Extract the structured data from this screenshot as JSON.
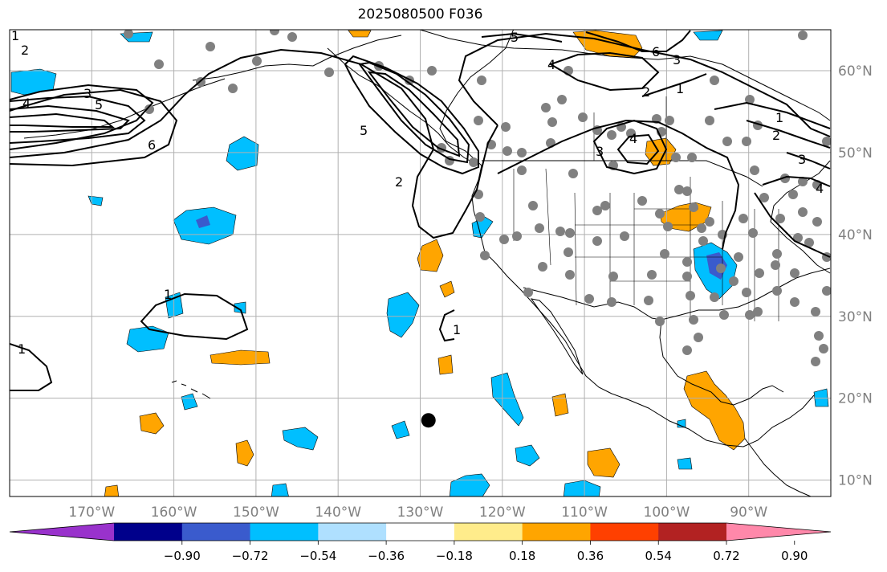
{
  "title": "2025080500 F036",
  "map": {
    "lon_range": [
      -180,
      -80
    ],
    "lat_range": [
      8,
      65
    ],
    "lon_ticks": [
      {
        "value": -170,
        "label": "170°W"
      },
      {
        "value": -160,
        "label": "160°W"
      },
      {
        "value": -150,
        "label": "150°W"
      },
      {
        "value": -140,
        "label": "140°W"
      },
      {
        "value": -130,
        "label": "130°W"
      },
      {
        "value": -120,
        "label": "120°W"
      },
      {
        "value": -110,
        "label": "110°W"
      },
      {
        "value": -100,
        "label": "100°W"
      },
      {
        "value": -90,
        "label": "90°W"
      }
    ],
    "lat_ticks": [
      {
        "value": 60,
        "label": "60°N"
      },
      {
        "value": 50,
        "label": "50°N"
      },
      {
        "value": 40,
        "label": "40°N"
      },
      {
        "value": 30,
        "label": "30°N"
      },
      {
        "value": 20,
        "label": "20°N"
      },
      {
        "value": 10,
        "label": "10°N"
      }
    ],
    "grid": true,
    "marker": {
      "lon": -129,
      "lat": 17.3,
      "color": "#000000"
    }
  },
  "colorbar": {
    "colors": [
      "#9932cc",
      "#00008b",
      "#3a5bcd",
      "#00bfff",
      "#afe0ff",
      "#ffffff",
      "#ffec8b",
      "#ffa500",
      "#ff4000",
      "#b22222",
      "#ff88aa"
    ],
    "ticks": [
      "−0.90",
      "−0.72",
      "−0.54",
      "−0.36",
      "−0.18",
      "0.18",
      "0.36",
      "0.54",
      "0.72",
      "0.90"
    ],
    "extend": "both"
  },
  "contour_labels": [
    "1",
    "2",
    "3",
    "4",
    "5",
    "6"
  ],
  "colors": {
    "neg_fill": "#00bfff",
    "neg_dark": "#3a5bcd",
    "pos_fill": "#ffa500",
    "station": "#808080",
    "grid": "#b0b0b0"
  }
}
